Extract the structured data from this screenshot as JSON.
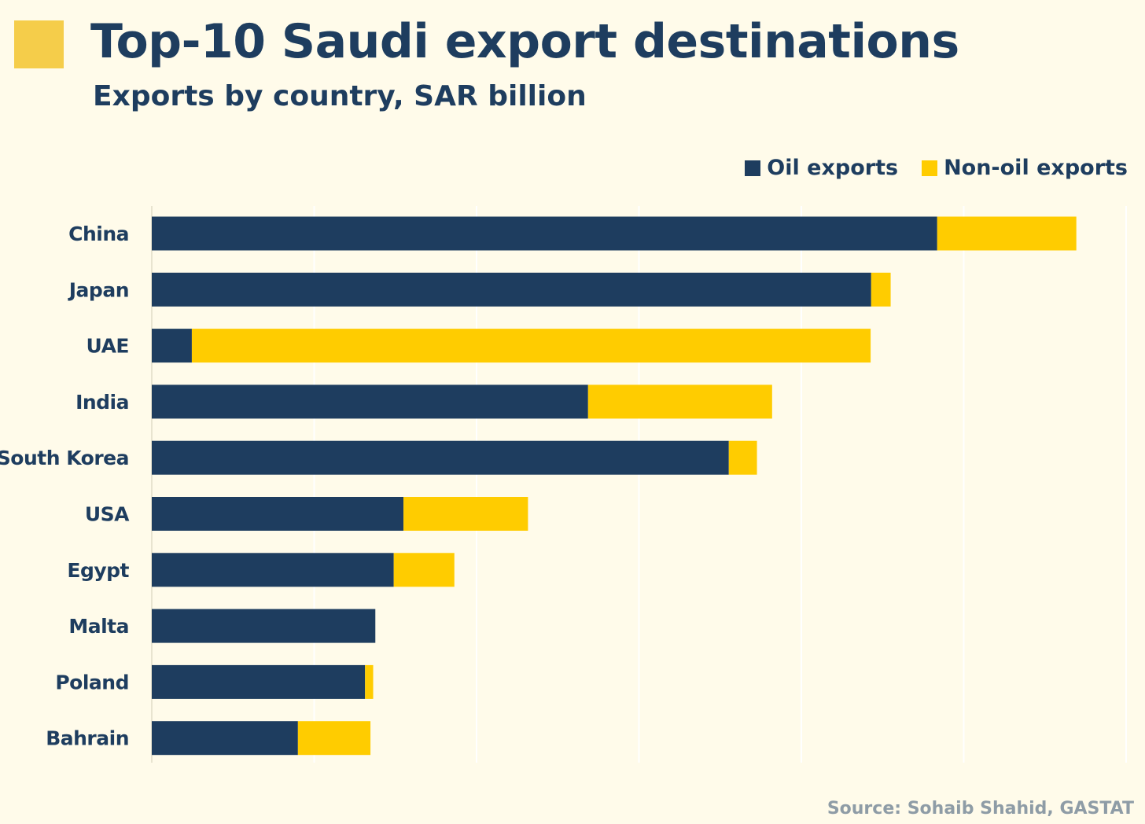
{
  "colors": {
    "oil": "#1e3d5f",
    "nonoil": "#ffcc00",
    "grid": "#ffffff",
    "title_square": "#f5cd4a"
  },
  "chart_data": {
    "type": "bar",
    "orientation": "horizontal",
    "stacked": true,
    "title": "Top-10 Saudi export destinations",
    "subtitle": "Exports by country, SAR billion",
    "xlabel": "",
    "ylabel": "",
    "xlim": [
      0,
      180
    ],
    "grid": true,
    "legend_position": "top-right",
    "categories": [
      "China",
      "Japan",
      "UAE",
      "India",
      "South Korea",
      "USA",
      "Egypt",
      "Malta",
      "Poland",
      "Bahrain"
    ],
    "series": [
      {
        "name": "Oil exports",
        "values": [
          145.1,
          132.9,
          7.4,
          80.6,
          106.6,
          46.5,
          44.7,
          41.3,
          39.4,
          27.0
        ]
      },
      {
        "name": "Non-oil exports",
        "values": [
          25.7,
          3.6,
          125.4,
          34.0,
          5.2,
          23.0,
          11.2,
          0,
          1.5,
          13.4
        ]
      }
    ],
    "source": "Source: Sohaib Shahid, GASTAT"
  }
}
